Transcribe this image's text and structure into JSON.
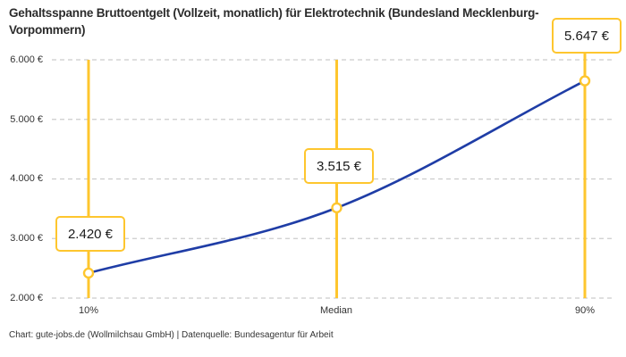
{
  "title": "Gehaltsspanne Bruttoentgelt (Vollzeit, monatlich) für Elektrotechnik (Bundesland Mecklenburg-Vorpommern)",
  "footer": "Chart: gute-jobs.de (Wollmilchsau GmbH) | Datenquelle: Bundesagentur für Arbeit",
  "chart_data": {
    "type": "line",
    "title": "Gehaltsspanne Bruttoentgelt (Vollzeit, monatlich) für Elektrotechnik (Bundesland Mecklenburg-Vorpommern)",
    "categories": [
      "10%",
      "Median",
      "90%"
    ],
    "values": [
      2420,
      3515,
      5647
    ],
    "value_labels": [
      "2.420 €",
      "3.515 €",
      "5.647 €"
    ],
    "y_ticks": [
      2000,
      3000,
      4000,
      5000,
      6000
    ],
    "y_tick_labels": [
      "2.000 €",
      "3.000 €",
      "4.000 €",
      "5.000 €",
      "6.000 €"
    ],
    "ylim": [
      2000,
      6000
    ],
    "grid": "horizontal-dashed",
    "legend": "none",
    "marker": "open-circle",
    "colors": {
      "accent_yellow": "#fec62e",
      "line_blue": "#1f3da6",
      "gridline": "#cccccc",
      "axis_text": "#333333",
      "title_text": "#2b2b2b"
    }
  }
}
